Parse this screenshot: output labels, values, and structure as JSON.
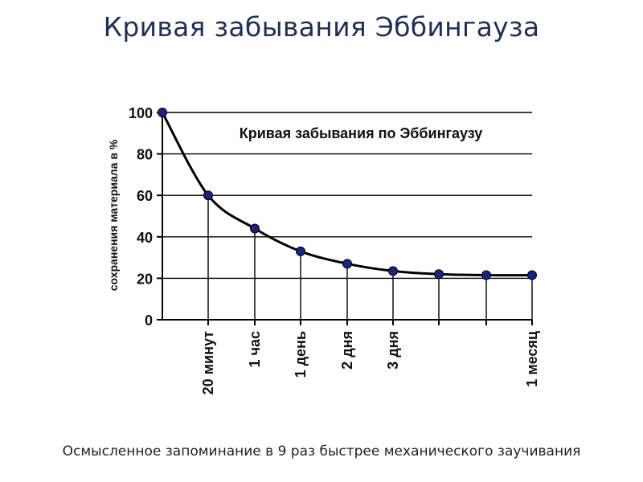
{
  "page": {
    "title": "Кривая забывания Эббингауза",
    "caption": "Осмысленное запоминание в 9 раз быстрее механического заучивания"
  },
  "chart_data": {
    "type": "line",
    "title": "Кривая забывания по Эббингаузу",
    "xlabel": "",
    "ylabel": "сохранения материала в %",
    "ylim": [
      0,
      100
    ],
    "yticks": [
      0,
      20,
      40,
      60,
      80,
      100
    ],
    "grid": true,
    "x_ticks": [
      "",
      "20 минут",
      "1 час",
      "1 день",
      "2 дня",
      "3 дня",
      "",
      "",
      "1 месяц"
    ],
    "series": [
      {
        "values": [
          100,
          60,
          44,
          33,
          27,
          23.5,
          22,
          21.5,
          21.5
        ]
      }
    ],
    "colors": {
      "line": "#000000",
      "marker": "#1a237e",
      "grid": "#000000"
    }
  }
}
